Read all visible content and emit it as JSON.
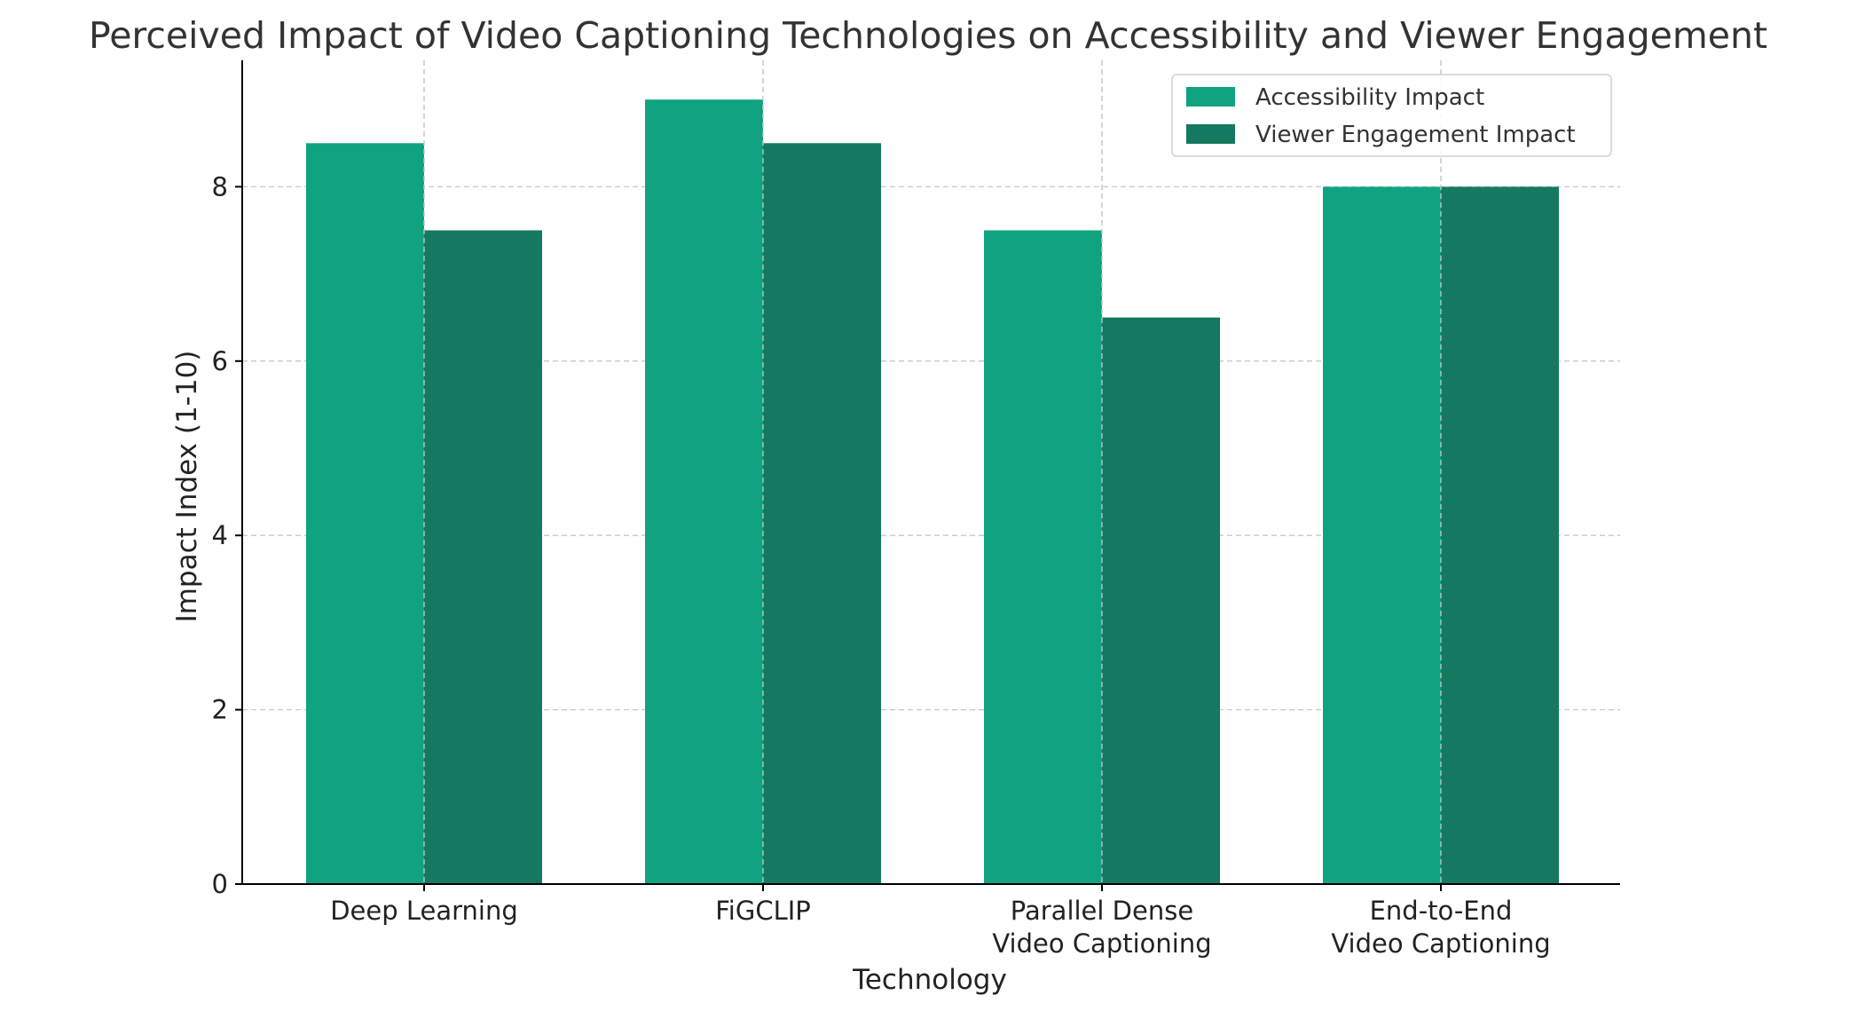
{
  "chart_data": {
    "type": "bar",
    "title": "Perceived Impact of Video Captioning Technologies on Accessibility and Viewer Engagement",
    "xlabel": "Technology",
    "ylabel": "Impact Index (1-10)",
    "categories": [
      [
        "Deep Learning"
      ],
      [
        "FiGCLIP"
      ],
      [
        "Parallel Dense",
        "Video Captioning"
      ],
      [
        "End-to-End",
        "Video Captioning"
      ]
    ],
    "series": [
      {
        "name": "Accessibility Impact",
        "color": "#10a37f",
        "values": [
          8.5,
          9.0,
          7.5,
          8.0
        ]
      },
      {
        "name": "Viewer Engagement Impact",
        "color": "#147960",
        "values": [
          7.5,
          8.5,
          6.5,
          8.0
        ]
      }
    ],
    "ylim": [
      0,
      9.45
    ],
    "yticks": [
      0,
      2,
      4,
      6,
      8
    ],
    "grid": true,
    "legend_position": "top-right"
  }
}
